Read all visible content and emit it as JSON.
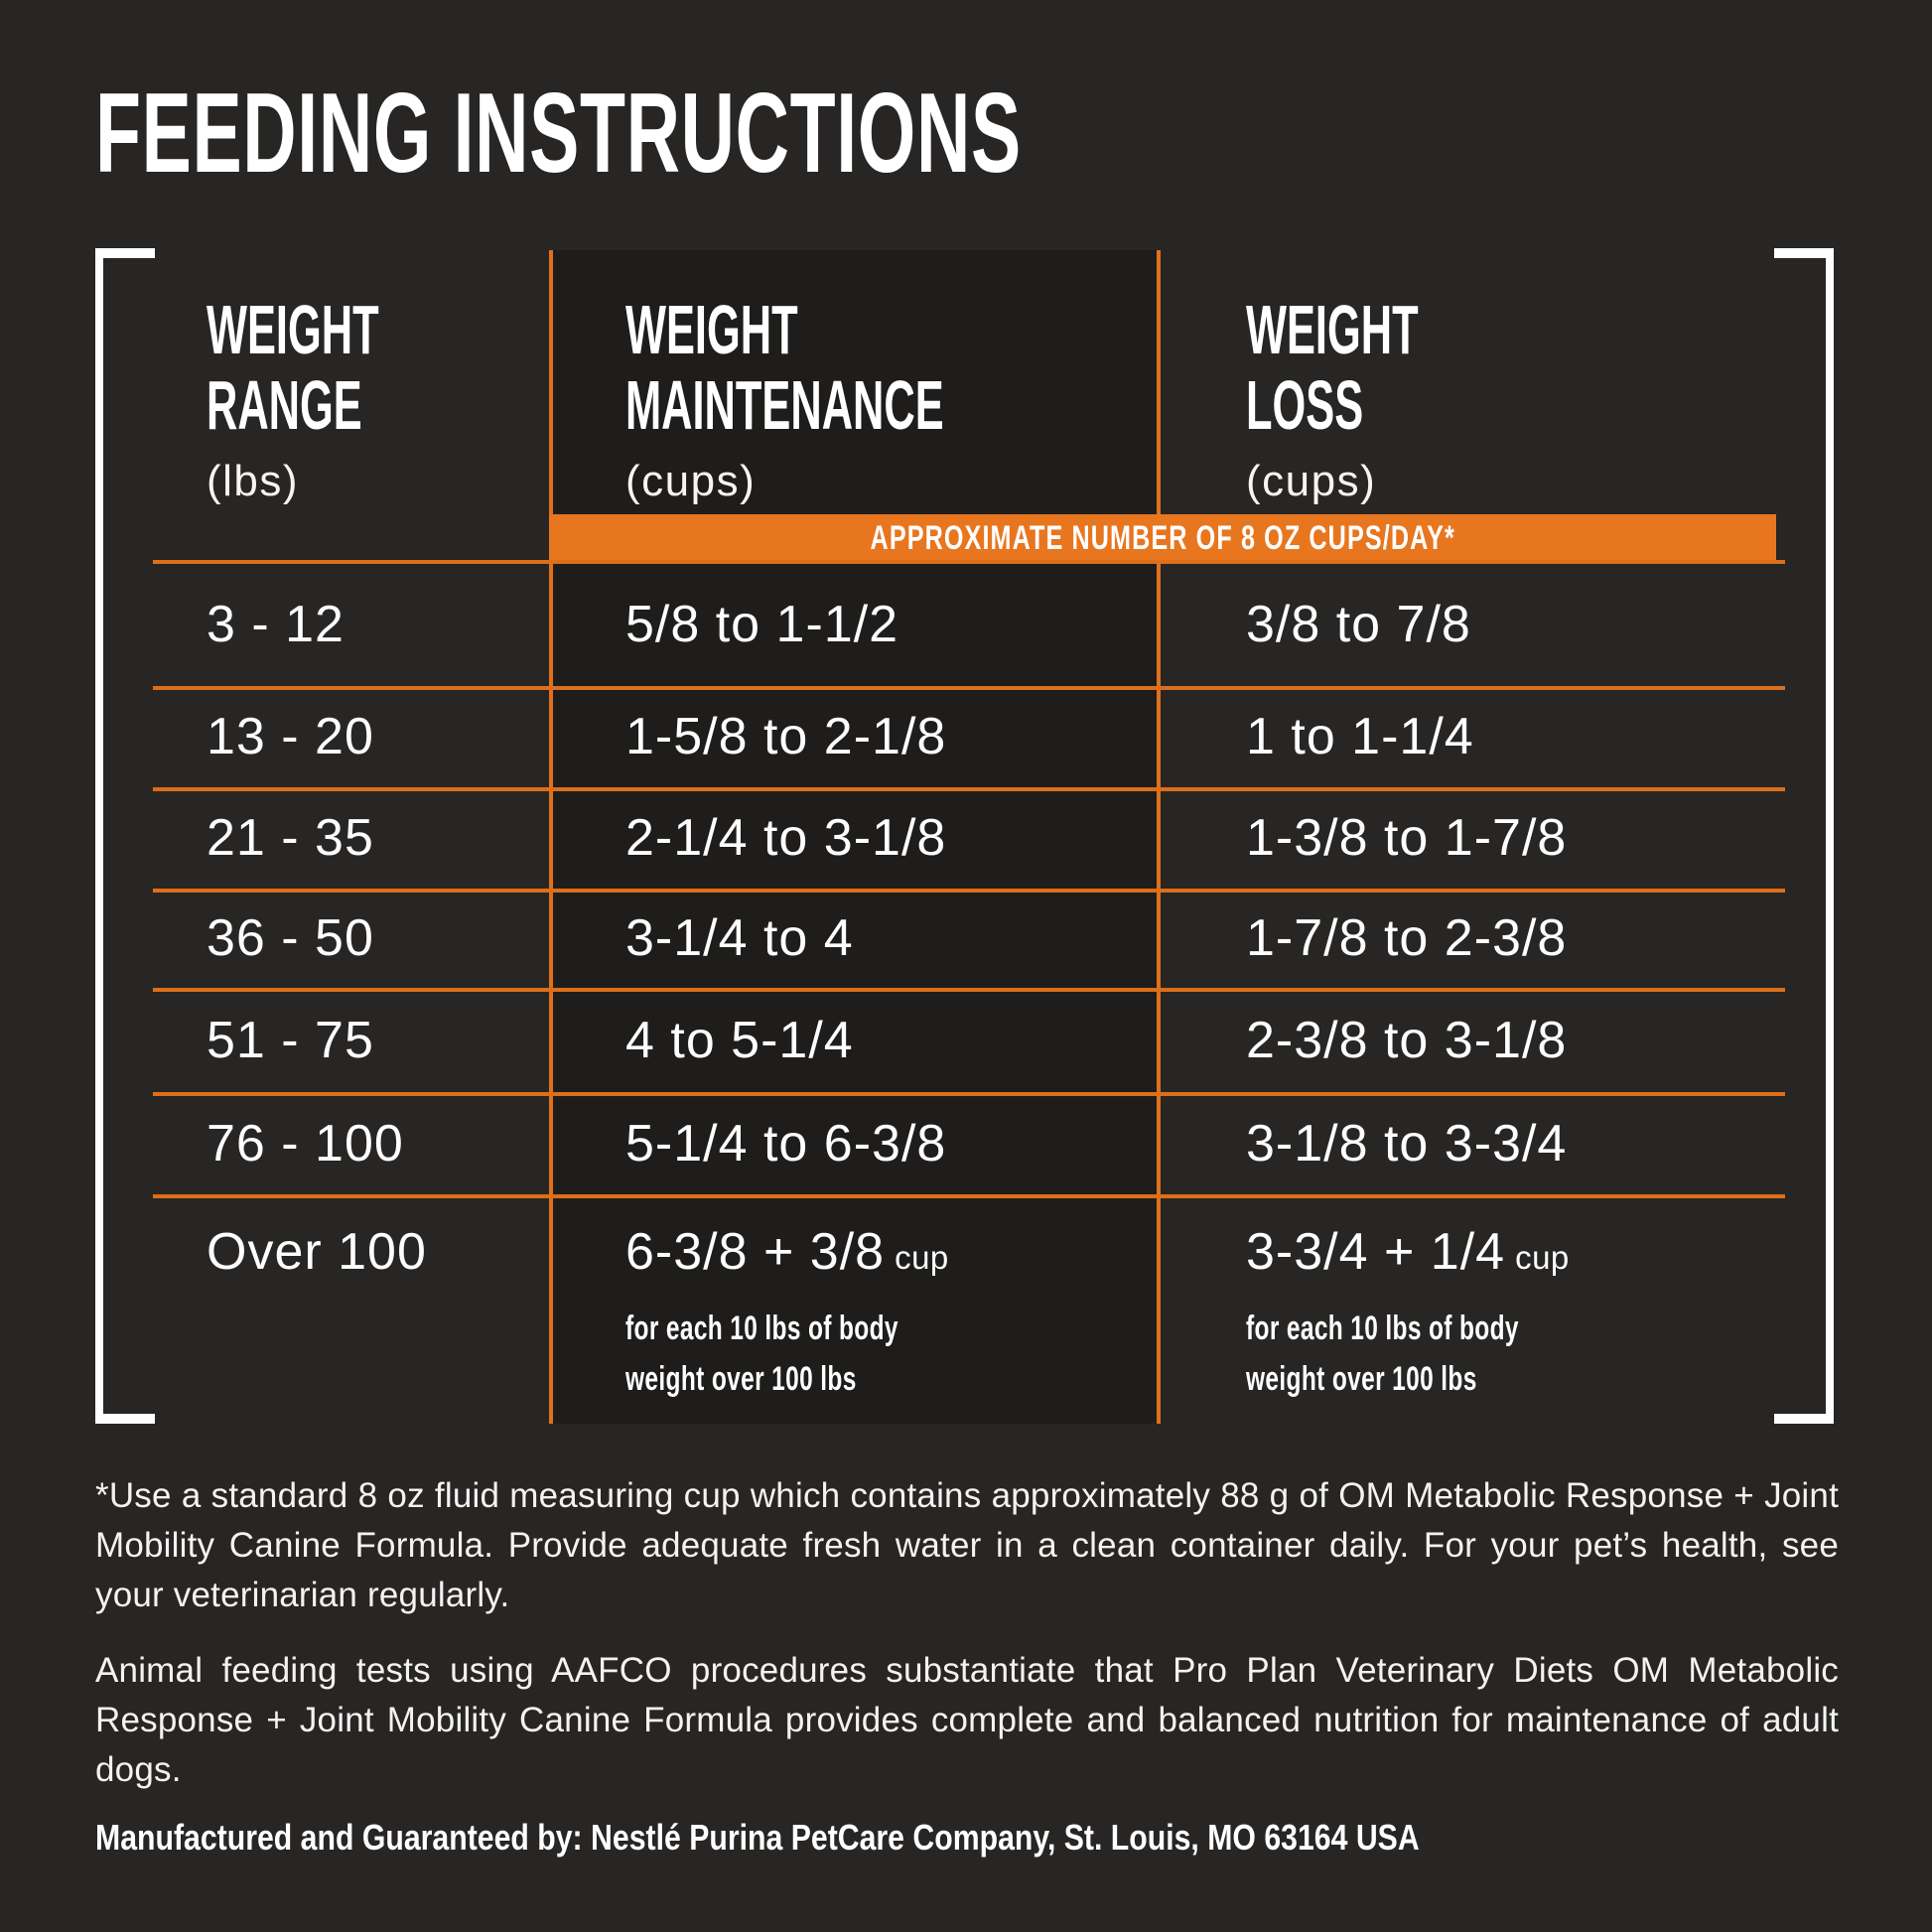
{
  "title": "FEEDING INSTRUCTIONS",
  "colors": {
    "background": "#272625",
    "panel": "#1E1D1C",
    "accent_orange": "#E8761F",
    "rule_orange": "#DD6E1A",
    "text_white": "#FFFFFF"
  },
  "table": {
    "banner_label": "APPROXIMATE NUMBER OF 8 OZ CUPS/DAY*",
    "columns": [
      {
        "line1": "WEIGHT",
        "line2": "RANGE",
        "unit": "(lbs)"
      },
      {
        "line1": "WEIGHT",
        "line2": "MAINTENANCE",
        "unit": "(cups)"
      },
      {
        "line1": "WEIGHT",
        "line2": "LOSS",
        "unit": "(cups)"
      }
    ],
    "rows": [
      {
        "range": "3 - 12",
        "maintenance": "5/8 to 1-1/2",
        "loss": "3/8 to 7/8"
      },
      {
        "range": "13 - 20",
        "maintenance": "1-5/8 to 2-1/8",
        "loss": "1 to 1-1/4"
      },
      {
        "range": "21 - 35",
        "maintenance": "2-1/4 to 3-1/8",
        "loss": "1-3/8 to 1-7/8"
      },
      {
        "range": "36 - 50",
        "maintenance": "3-1/4 to 4",
        "loss": "1-7/8 to 2-3/8"
      },
      {
        "range": "51 - 75",
        "maintenance": "4 to 5-1/4",
        "loss": "2-3/8 to 3-1/8"
      },
      {
        "range": "76 - 100",
        "maintenance": "5-1/4 to 6-3/8",
        "loss": "3-1/8 to 3-3/4"
      }
    ],
    "last_row": {
      "range": "Over 100",
      "maintenance_value": "6-3/8 + 3/8",
      "maintenance_unit": "cup",
      "maintenance_note": "for each 10 lbs of body weight over 100 lbs",
      "loss_value": "3-3/4 + 1/4",
      "loss_unit": "cup",
      "loss_note": "for each 10 lbs of body weight over 100 lbs"
    }
  },
  "footnotes": {
    "measuring_note": "*Use a standard 8 oz fluid measuring cup which contains approximately 88 g of OM Metabolic Response + Joint Mobility Canine Formula. Provide adequate fresh water in a clean container daily. For your pet’s health, see your veterinarian regularly.",
    "aafco_statement": "Animal feeding tests using AAFCO procedures substantiate that Pro Plan Veterinary Diets OM Metabolic Response + Joint Mobility Canine Formula provides complete and balanced nutrition for maintenance of adult dogs.",
    "manufacturer": "Manufactured and Guaranteed by: Nestlé Purina PetCare Company, St. Louis, MO 63164 USA"
  }
}
